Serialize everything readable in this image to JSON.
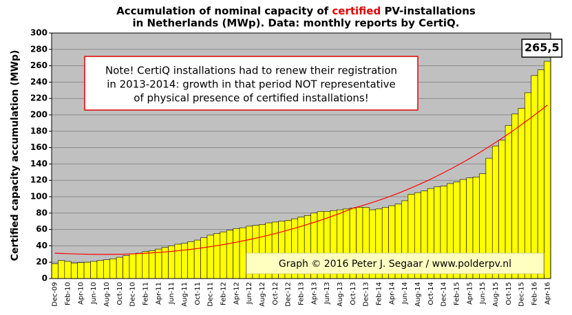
{
  "chart_data": {
    "type": "bar",
    "title": [
      [
        "Accumulation  of nominal  capacity of ",
        "certified",
        " PV-installations"
      ],
      "in Netherlands (MWp). Data: monthly  reports by CertiQ."
    ],
    "title_highlight_color": "#e00000",
    "y_label": "Certified  capacity  accumulation  (MWp)",
    "note": [
      "Note! CertiQ installations had to renew their registration",
      "in 2013-2014:  growth in that period NOT representative",
      "of physical presence of certified installations!"
    ],
    "credit": "Graph © 2016 Peter J. Segaar / www.polderpv.nl",
    "categories": [
      "Dec-09",
      null,
      "Feb-10",
      null,
      "Apr-10",
      null,
      "Jun-10",
      null,
      "Aug-10",
      null,
      "Oct-10",
      null,
      "Dec-10",
      null,
      "Feb-11",
      null,
      "Apr-11",
      null,
      "Jun-11",
      null,
      "Aug-11",
      null,
      "Oct-11",
      null,
      "Dec-11",
      null,
      "Feb-12",
      null,
      "Apr-12",
      null,
      "Jun-12",
      null,
      "Aug-12",
      null,
      "Oct-12",
      null,
      "Dec-12",
      null,
      "Feb-13",
      null,
      "Apr-13",
      null,
      "Jun-13",
      null,
      "Aug-13",
      null,
      "Oct-13",
      null,
      "Dec-13",
      null,
      "Feb-14",
      null,
      "Apr-14",
      null,
      "Jun-14",
      null,
      "Aug-14",
      null,
      "Oct-14",
      null,
      "Dec-14",
      null,
      "Feb-15",
      null,
      "Apr-15",
      null,
      "Jun-15",
      null,
      "Aug-15",
      null,
      "Oct-15",
      null,
      "Dec-15",
      null,
      "Feb-16",
      null,
      "Apr-16"
    ],
    "values": [
      18,
      22,
      21,
      19,
      19.5,
      20,
      21,
      22,
      23,
      24,
      26,
      28,
      30,
      31,
      33,
      34,
      36,
      38,
      40,
      42,
      43,
      45,
      47,
      50,
      53,
      55,
      57,
      59,
      61,
      62,
      64,
      65,
      66,
      68,
      69,
      70,
      71,
      73,
      75,
      77,
      80,
      82,
      82,
      83,
      84,
      85,
      86,
      87,
      87,
      84,
      85,
      87,
      89,
      91,
      95,
      103,
      105,
      107,
      110,
      112,
      113,
      116,
      118,
      121,
      123,
      124,
      128,
      147,
      162,
      169,
      187,
      201,
      208,
      227,
      248,
      255,
      265.5
    ],
    "value_labels": [
      null,
      null,
      null,
      null,
      null,
      null,
      null,
      null,
      null,
      null,
      null,
      null,
      null,
      null,
      null,
      null,
      null,
      null,
      null,
      null,
      null,
      null,
      null,
      null,
      null,
      null,
      null,
      null,
      null,
      null,
      null,
      null,
      null,
      null,
      null,
      null,
      null,
      null,
      null,
      null,
      null,
      null,
      null,
      null,
      null,
      null,
      null,
      null,
      null,
      null,
      null,
      null,
      null,
      null,
      null,
      null,
      null,
      null,
      null,
      null,
      null,
      null,
      null,
      null,
      null,
      null,
      null,
      null,
      null,
      null,
      null,
      null,
      null,
      null,
      null,
      null,
      "265,5"
    ],
    "color": "#ffff00",
    "trendline": {
      "color": "#ff0000",
      "values": [
        31,
        30.7,
        30.4,
        30.1,
        29.9,
        29.7,
        29.6,
        29.5,
        29.5,
        29.6,
        29.7,
        29.9,
        30.2,
        30.5,
        30.9,
        31.4,
        31.9,
        32.5,
        33.2,
        34,
        34.8,
        35.7,
        36.7,
        37.8,
        39,
        40.2,
        41.5,
        42.9,
        44.4,
        46,
        47.6,
        49.3,
        51.1,
        53,
        55,
        57.1,
        59.3,
        61.5,
        63.8,
        66.2,
        68.7,
        71.3,
        74,
        76.8,
        79.7,
        82.8,
        86,
        88.2,
        90.5,
        93,
        95.6,
        98.4,
        101.3,
        104.3,
        107.5,
        110.8,
        114.2,
        117.8,
        121.5,
        125.4,
        129.4,
        133.5,
        137.8,
        142.2,
        146.7,
        151.4,
        156.2,
        161.2,
        166.3,
        171.5,
        176.9,
        182.4,
        188.1,
        193.8,
        199.8,
        205.8,
        212
      ]
    },
    "ylim": [
      0,
      300
    ],
    "yticks": [
      0,
      20,
      40,
      60,
      80,
      100,
      120,
      140,
      160,
      180,
      200,
      220,
      240,
      260,
      280,
      300
    ],
    "grid": true,
    "plot_background": "#c0c0c0"
  }
}
